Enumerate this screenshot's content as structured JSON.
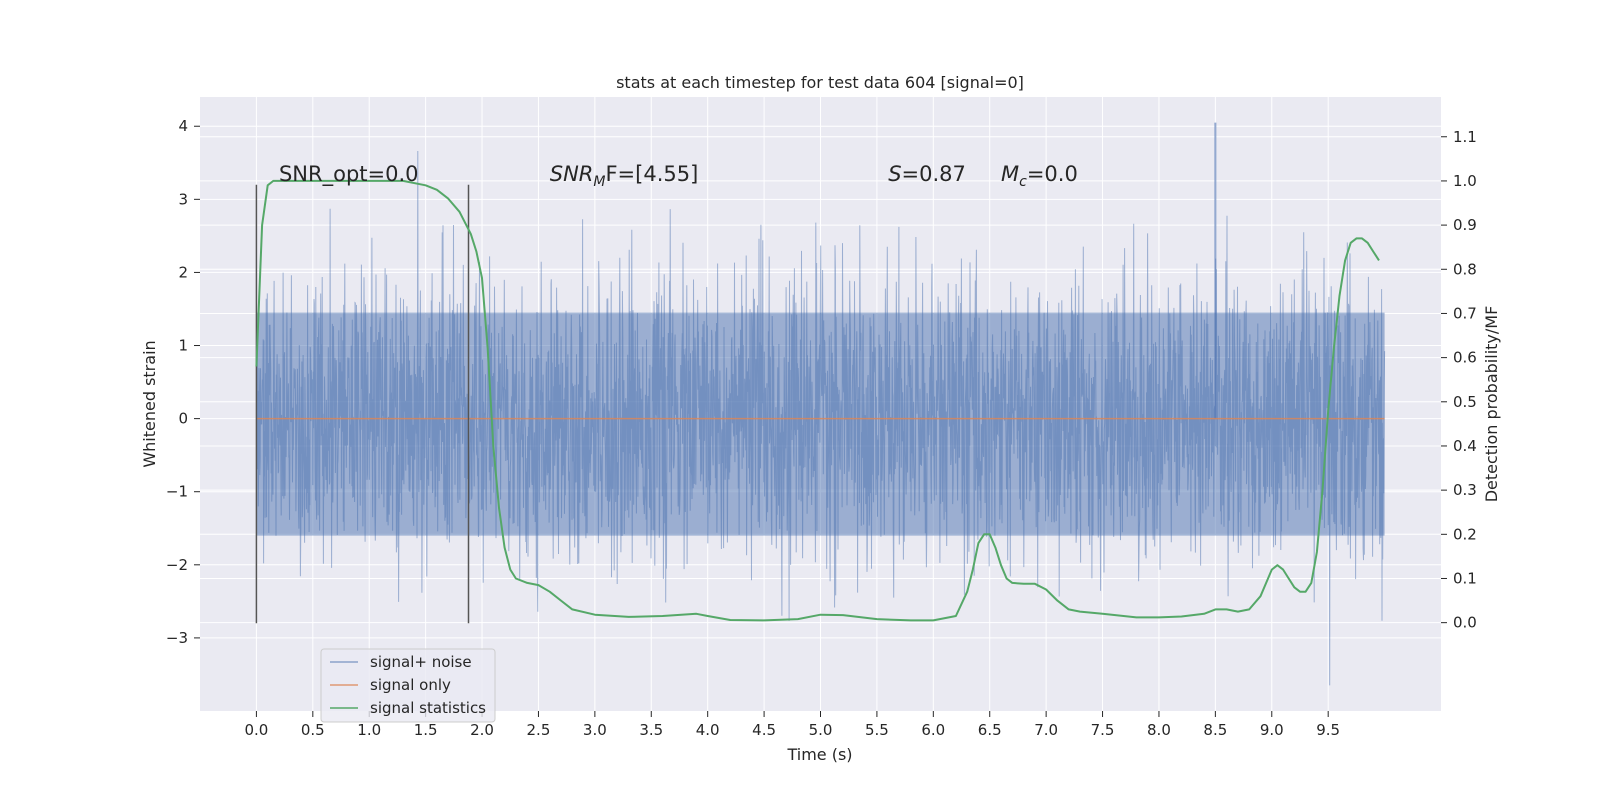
{
  "chart_data": {
    "type": "line",
    "title": "stats at each timestep for test data 604 [signal=0]",
    "xlabel": "Time (s)",
    "ylabel": "Whitened strain",
    "ylabel_right": "Detection probability/MF",
    "xlim": [
      -0.5,
      10.5
    ],
    "ylim": [
      -4.0,
      4.4
    ],
    "ylim_right": [
      -0.2,
      1.19
    ],
    "x_ticks": [
      0.0,
      0.5,
      1.0,
      1.5,
      2.0,
      2.5,
      3.0,
      3.5,
      4.0,
      4.5,
      5.0,
      5.5,
      6.0,
      6.5,
      7.0,
      7.5,
      8.0,
      8.5,
      9.0,
      9.5
    ],
    "x_tick_labels": [
      "0.0",
      "0.5",
      "1.0",
      "1.5",
      "2.0",
      "2.5",
      "3.0",
      "3.5",
      "4.0",
      "4.5",
      "5.0",
      "5.5",
      "6.0",
      "6.5",
      "7.0",
      "7.5",
      "8.0",
      "8.5",
      "9.0",
      "9.5"
    ],
    "y_ticks": [
      -3,
      -2,
      -1,
      0,
      1,
      2,
      3,
      4
    ],
    "y_tick_labels": [
      "−3",
      "−2",
      "−1",
      "0",
      "1",
      "2",
      "3",
      "4"
    ],
    "y_right_ticks": [
      0.0,
      0.1,
      0.2,
      0.3,
      0.4,
      0.5,
      0.6,
      0.7,
      0.8,
      0.9,
      1.0,
      1.1
    ],
    "y_right_tick_labels": [
      "0.0",
      "0.1",
      "0.2",
      "0.3",
      "0.4",
      "0.5",
      "0.6",
      "0.7",
      "0.8",
      "0.9",
      "1.0",
      "1.1"
    ],
    "grid": true,
    "legend_placement": "lower-left",
    "colors": {
      "background": "#eaeaf2",
      "grid": "#ffffff",
      "noise": "#4c72b0",
      "signal_only": "#dd8452",
      "statistics": "#55a868",
      "markers": "#555555"
    },
    "series": [
      {
        "name": "signal+ noise",
        "axis": "left",
        "kind": "noise",
        "x_range": [
          0.0,
          10.0
        ],
        "core_band": [
          -1.6,
          1.45
        ],
        "envelope": [
          -3.65,
          4.05
        ],
        "peak_x": 8.5,
        "peak_y": 4.05
      },
      {
        "name": "signal only",
        "axis": "left",
        "x": [
          0.0,
          10.0
        ],
        "y": [
          0.0,
          0.0
        ]
      },
      {
        "name": "signal statistics",
        "axis": "right",
        "x": [
          0.0,
          0.05,
          0.1,
          0.15,
          0.2,
          0.3,
          0.5,
          0.8,
          1.0,
          1.3,
          1.5,
          1.6,
          1.7,
          1.8,
          1.9,
          1.95,
          2.0,
          2.05,
          2.1,
          2.15,
          2.2,
          2.25,
          2.3,
          2.4,
          2.5,
          2.6,
          2.7,
          2.8,
          3.0,
          3.3,
          3.6,
          3.9,
          4.0,
          4.2,
          4.5,
          4.8,
          5.0,
          5.2,
          5.5,
          5.8,
          6.0,
          6.2,
          6.3,
          6.35,
          6.4,
          6.45,
          6.5,
          6.55,
          6.6,
          6.65,
          6.7,
          6.8,
          6.9,
          7.0,
          7.1,
          7.2,
          7.3,
          7.5,
          7.8,
          8.0,
          8.2,
          8.4,
          8.5,
          8.6,
          8.7,
          8.8,
          8.9,
          9.0,
          9.05,
          9.1,
          9.15,
          9.2,
          9.25,
          9.3,
          9.35,
          9.4,
          9.45,
          9.5,
          9.55,
          9.6,
          9.65,
          9.7,
          9.75,
          9.8,
          9.85,
          9.9,
          9.95
        ],
        "y": [
          0.58,
          0.9,
          0.99,
          1.0,
          1.0,
          1.0,
          1.0,
          1.0,
          1.0,
          1.0,
          0.99,
          0.98,
          0.96,
          0.93,
          0.88,
          0.84,
          0.78,
          0.62,
          0.4,
          0.26,
          0.17,
          0.12,
          0.1,
          0.09,
          0.085,
          0.07,
          0.05,
          0.03,
          0.018,
          0.013,
          0.015,
          0.02,
          0.015,
          0.006,
          0.005,
          0.008,
          0.018,
          0.017,
          0.008,
          0.005,
          0.005,
          0.015,
          0.07,
          0.12,
          0.18,
          0.2,
          0.2,
          0.17,
          0.13,
          0.1,
          0.09,
          0.088,
          0.088,
          0.075,
          0.05,
          0.03,
          0.025,
          0.02,
          0.012,
          0.012,
          0.014,
          0.02,
          0.03,
          0.03,
          0.025,
          0.03,
          0.06,
          0.12,
          0.13,
          0.12,
          0.1,
          0.08,
          0.07,
          0.07,
          0.09,
          0.16,
          0.3,
          0.48,
          0.62,
          0.74,
          0.82,
          0.86,
          0.87,
          0.87,
          0.86,
          0.84,
          0.82
        ]
      }
    ],
    "vlines": [
      0.0,
      1.88
    ],
    "vline_range": [
      -2.8,
      3.2
    ],
    "annotations": [
      {
        "text": "SNR_opt=0.0",
        "x": 0.2,
        "y": 3.35
      },
      {
        "text": "SNR",
        "sub": "M",
        "suffix": "F=[4.55]",
        "italic": true,
        "x": 2.6,
        "y": 3.35
      },
      {
        "text": "S",
        "suffix": "=0.87",
        "italic": true,
        "x": 5.6,
        "y": 3.35
      },
      {
        "text": "M",
        "sub": "c",
        "suffix": "=0.0",
        "italic": true,
        "x": 6.6,
        "y": 3.35
      }
    ]
  }
}
